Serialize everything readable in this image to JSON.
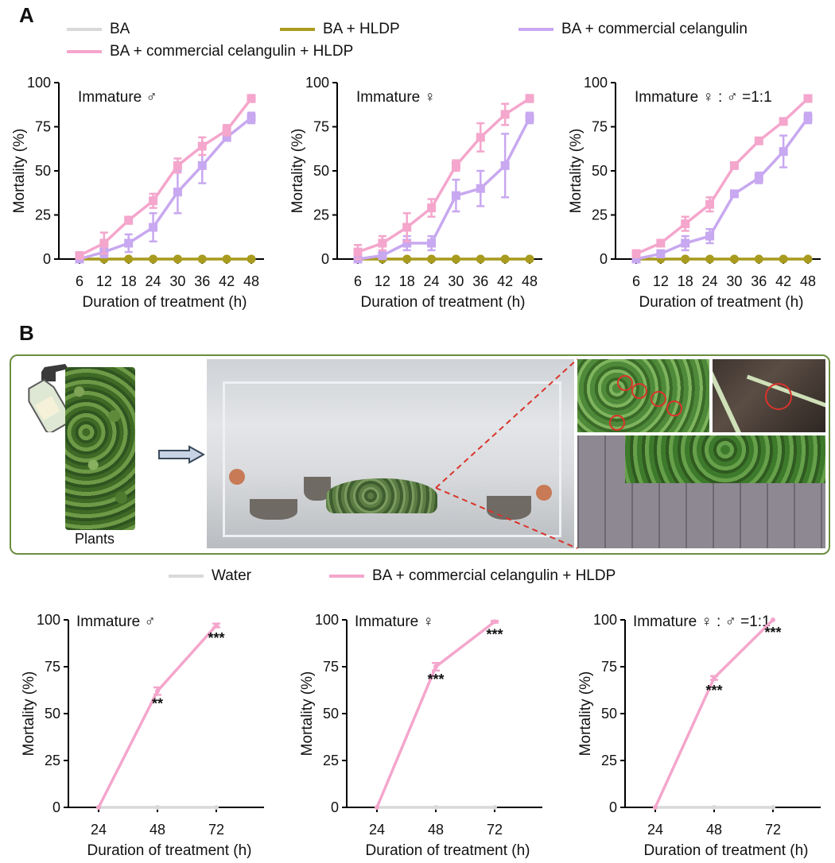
{
  "panel_labels": {
    "a": "A",
    "b": "B"
  },
  "legend_a": [
    {
      "label": "BA",
      "color": "#d9d9d9"
    },
    {
      "label": "BA + HLDP",
      "color": "#a89b1e"
    },
    {
      "label": "BA + commercial celangulin",
      "color": "#c8a8f0"
    },
    {
      "label": "BA + commercial celangulin + HLDP",
      "color": "#f4a6cc"
    }
  ],
  "legend_b": [
    {
      "label": "Water",
      "color": "#d9d9d9"
    },
    {
      "label": "BA + commercial celangulin + HLDP",
      "color": "#f4a6cc"
    }
  ],
  "photo": {
    "plants_label": "Plants"
  },
  "chart_data": [
    {
      "type": "line",
      "panel": "A",
      "title": "Immature ♂",
      "xlabel": "Duration of treatment (h)",
      "ylabel": "Mortality (%)",
      "categories": [
        "6",
        "12",
        "18",
        "24",
        "30",
        "36",
        "42",
        "48"
      ],
      "yticks": [
        "0",
        "25",
        "50",
        "75",
        "100"
      ],
      "ylim": [
        0,
        100
      ],
      "series": [
        {
          "name": "BA",
          "color": "#d9d9d9",
          "values": [
            0,
            0,
            0,
            0,
            0,
            0,
            0,
            0
          ],
          "errors": [
            0,
            0,
            0,
            0,
            0,
            0,
            0,
            0
          ]
        },
        {
          "name": "BA + HLDP",
          "color": "#a89b1e",
          "values": [
            0,
            0,
            0,
            0,
            0,
            0,
            0,
            0
          ],
          "errors": [
            0,
            0,
            0,
            0,
            0,
            0,
            0,
            0
          ]
        },
        {
          "name": "BA + commercial celangulin",
          "color": "#c8a8f0",
          "values": [
            0,
            4,
            9,
            18,
            38,
            53,
            69,
            80
          ],
          "errors": [
            0,
            3,
            5,
            8,
            12,
            10,
            2,
            3
          ]
        },
        {
          "name": "BA + commercial celangulin + HLDP",
          "color": "#f4a6cc",
          "values": [
            2,
            9,
            22,
            33,
            53,
            64,
            73,
            91
          ],
          "errors": [
            1,
            6,
            2,
            4,
            4,
            5,
            3,
            2
          ]
        }
      ]
    },
    {
      "type": "line",
      "panel": "A",
      "title": "Immature ♀",
      "xlabel": "Duration of treatment (h)",
      "ylabel": "Mortality (%)",
      "categories": [
        "6",
        "12",
        "18",
        "24",
        "30",
        "36",
        "42",
        "48"
      ],
      "yticks": [
        "0",
        "25",
        "50",
        "75",
        "100"
      ],
      "ylim": [
        0,
        100
      ],
      "series": [
        {
          "name": "BA",
          "color": "#d9d9d9",
          "values": [
            0,
            0,
            0,
            0,
            0,
            0,
            0,
            0
          ],
          "errors": [
            0,
            0,
            0,
            0,
            0,
            0,
            0,
            0
          ]
        },
        {
          "name": "BA + HLDP",
          "color": "#a89b1e",
          "values": [
            0,
            0,
            0,
            0,
            0,
            0,
            0,
            0
          ],
          "errors": [
            0,
            0,
            0,
            0,
            0,
            0,
            0,
            0
          ]
        },
        {
          "name": "BA + commercial celangulin",
          "color": "#c8a8f0",
          "values": [
            0,
            2,
            9,
            9,
            36,
            40,
            53,
            80
          ],
          "errors": [
            0,
            2,
            4,
            4,
            9,
            10,
            18,
            3
          ]
        },
        {
          "name": "BA + commercial celangulin + HLDP",
          "color": "#f4a6cc",
          "values": [
            4,
            9,
            18,
            29,
            53,
            69,
            82,
            91
          ],
          "errors": [
            4,
            4,
            8,
            5,
            3,
            8,
            6,
            2
          ]
        }
      ]
    },
    {
      "type": "line",
      "panel": "A",
      "title": "Immature ♀ : ♂ =1:1",
      "xlabel": "Duration of treatment (h)",
      "ylabel": "Mortality (%)",
      "categories": [
        "6",
        "12",
        "18",
        "24",
        "30",
        "36",
        "42",
        "48"
      ],
      "yticks": [
        "0",
        "25",
        "50",
        "75",
        "100"
      ],
      "ylim": [
        0,
        100
      ],
      "series": [
        {
          "name": "BA",
          "color": "#d9d9d9",
          "values": [
            0,
            0,
            0,
            0,
            0,
            0,
            0,
            0
          ],
          "errors": [
            0,
            0,
            0,
            0,
            0,
            0,
            0,
            0
          ]
        },
        {
          "name": "BA + HLDP",
          "color": "#a89b1e",
          "values": [
            0,
            0,
            0,
            0,
            0,
            0,
            0,
            0
          ],
          "errors": [
            0,
            0,
            0,
            0,
            0,
            0,
            0,
            0
          ]
        },
        {
          "name": "BA + commercial celangulin",
          "color": "#c8a8f0",
          "values": [
            0,
            3,
            9,
            13,
            37,
            46,
            61,
            80
          ],
          "errors": [
            0,
            2,
            4,
            4,
            1,
            3,
            9,
            3
          ]
        },
        {
          "name": "BA + commercial celangulin + HLDP",
          "color": "#f4a6cc",
          "values": [
            3,
            9,
            20,
            31,
            53,
            67,
            78,
            91
          ],
          "errors": [
            2,
            1,
            4,
            4,
            1,
            1,
            1,
            1
          ]
        }
      ]
    },
    {
      "type": "line",
      "panel": "B",
      "title": "Immature ♂",
      "xlabel": "Duration of treatment (h)",
      "ylabel": "Mortality (%)",
      "categories": [
        "24",
        "48",
        "72"
      ],
      "yticks": [
        "0",
        "25",
        "50",
        "75",
        "100"
      ],
      "ylim": [
        0,
        100
      ],
      "series": [
        {
          "name": "Water",
          "color": "#d9d9d9",
          "values": [
            0,
            0,
            0
          ],
          "errors": [
            0,
            0,
            0
          ]
        },
        {
          "name": "BA + commercial celangulin + HLDP",
          "color": "#f4a6cc",
          "values": [
            0,
            62,
            97
          ],
          "errors": [
            0,
            2,
            1
          ]
        }
      ],
      "annotations": [
        {
          "category": "48",
          "text": "**"
        },
        {
          "category": "72",
          "text": "***"
        }
      ]
    },
    {
      "type": "line",
      "panel": "B",
      "title": "Immature ♀",
      "xlabel": "Duration of treatment (h)",
      "ylabel": "Mortality (%)",
      "categories": [
        "24",
        "48",
        "72"
      ],
      "yticks": [
        "0",
        "25",
        "50",
        "75",
        "100"
      ],
      "ylim": [
        0,
        100
      ],
      "series": [
        {
          "name": "Water",
          "color": "#d9d9d9",
          "values": [
            0,
            0,
            0
          ],
          "errors": [
            0,
            0,
            0
          ]
        },
        {
          "name": "BA + commercial celangulin + HLDP",
          "color": "#f4a6cc",
          "values": [
            0,
            75,
            99
          ],
          "errors": [
            0,
            2,
            0.5
          ]
        }
      ],
      "annotations": [
        {
          "category": "48",
          "text": "***"
        },
        {
          "category": "72",
          "text": "***"
        }
      ]
    },
    {
      "type": "line",
      "panel": "B",
      "title": "Immature ♀ : ♂ =1:1",
      "xlabel": "Duration of treatment (h)",
      "ylabel": "Mortality (%)",
      "categories": [
        "24",
        "48",
        "72"
      ],
      "yticks": [
        "0",
        "25",
        "50",
        "75",
        "100"
      ],
      "ylim": [
        0,
        100
      ],
      "series": [
        {
          "name": "Water",
          "color": "#d9d9d9",
          "values": [
            0,
            0,
            0
          ],
          "errors": [
            0,
            0,
            0
          ]
        },
        {
          "name": "BA + commercial celangulin + HLDP",
          "color": "#f4a6cc",
          "values": [
            0,
            69,
            100
          ],
          "errors": [
            0,
            1,
            0
          ]
        }
      ],
      "annotations": [
        {
          "category": "48",
          "text": "***"
        },
        {
          "category": "72",
          "text": "***"
        }
      ]
    }
  ]
}
